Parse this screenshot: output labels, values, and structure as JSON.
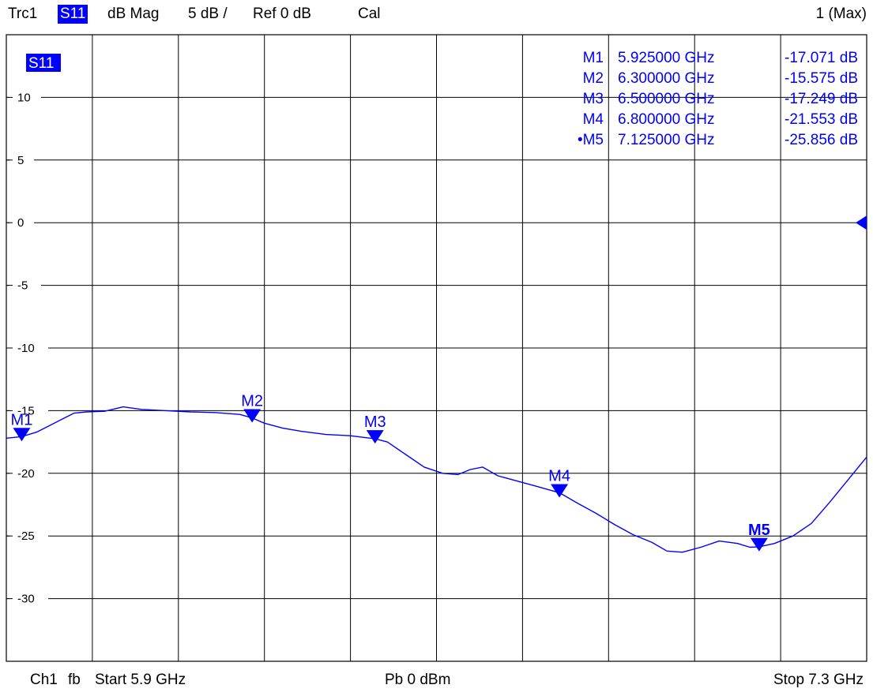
{
  "header": {
    "trace": "Trc1",
    "parameter": "S11",
    "format": "dB Mag",
    "scale": "5 dB /",
    "reference": "Ref 0 dB",
    "cal_status": "Cal",
    "window": "1 (Max)"
  },
  "footer": {
    "channel": "Ch1",
    "sweep_flag": "fb",
    "start": "Start  5.9 GHz",
    "power": "Pb   0 dBm",
    "stop": "Stop  7.3 GHz"
  },
  "colors": {
    "trace": "#0000ff",
    "grid": "#000000",
    "background": "#ffffff",
    "label_bg": "#0000ff"
  },
  "chart_data": {
    "type": "line",
    "trace_label": "S11",
    "x_range_ghz": [
      5.9,
      7.3
    ],
    "ylim": [
      -35,
      15
    ],
    "y_divisions": 10,
    "x_divisions": 10,
    "y_tick_values": [
      10,
      5,
      0,
      -5,
      -10,
      -15,
      -20,
      -25,
      -30
    ],
    "y_tick_labels": [
      "10",
      "5",
      "0",
      "-5",
      "-10",
      "-15",
      "-20",
      "-25",
      "-30"
    ],
    "reference_level": 0,
    "grid": true,
    "series": [
      {
        "name": "S11",
        "x": [
          5.9,
          5.925,
          5.95,
          5.97,
          5.99,
          6.01,
          6.03,
          6.06,
          6.09,
          6.12,
          6.16,
          6.2,
          6.24,
          6.28,
          6.3,
          6.32,
          6.35,
          6.38,
          6.42,
          6.46,
          6.5,
          6.52,
          6.55,
          6.58,
          6.61,
          6.635,
          6.655,
          6.675,
          6.7,
          6.73,
          6.76,
          6.8,
          6.83,
          6.86,
          6.89,
          6.92,
          6.95,
          6.975,
          7.0,
          7.03,
          7.06,
          7.09,
          7.11,
          7.125,
          7.15,
          7.18,
          7.21,
          7.24,
          7.27,
          7.3
        ],
        "y": [
          -17.2,
          -17.07,
          -16.7,
          -16.2,
          -15.7,
          -15.2,
          -15.1,
          -15.05,
          -14.7,
          -14.9,
          -15.0,
          -15.1,
          -15.15,
          -15.3,
          -15.58,
          -16.0,
          -16.4,
          -16.65,
          -16.9,
          -17.0,
          -17.25,
          -17.5,
          -18.5,
          -19.5,
          -20.0,
          -20.1,
          -19.7,
          -19.5,
          -20.2,
          -20.6,
          -21.0,
          -21.55,
          -22.4,
          -23.2,
          -24.1,
          -24.9,
          -25.5,
          -26.2,
          -26.3,
          -25.9,
          -25.4,
          -25.6,
          -25.9,
          -25.86,
          -25.6,
          -25.0,
          -24.0,
          -22.3,
          -20.5,
          -18.7
        ]
      }
    ],
    "markers": [
      {
        "name": "M1",
        "label": "M1",
        "freq": "5.925000 GHz",
        "value": "-17.071 dB",
        "x": 5.925,
        "y": -17.071,
        "active": false
      },
      {
        "name": "M2",
        "label": "M2",
        "freq": "6.300000 GHz",
        "value": "-15.575 dB",
        "x": 6.3,
        "y": -15.575,
        "active": false
      },
      {
        "name": "M3",
        "label": "M3",
        "freq": "6.500000 GHz",
        "value": "-17.249 dB",
        "x": 6.5,
        "y": -17.249,
        "active": false
      },
      {
        "name": "M4",
        "label": "M4",
        "freq": "6.800000 GHz",
        "value": "-21.553 dB",
        "x": 6.8,
        "y": -21.553,
        "active": false
      },
      {
        "name": "M5",
        "label": "M5",
        "freq": "7.125000 GHz",
        "value": "-25.856 dB",
        "x": 7.125,
        "y": -25.856,
        "active": true
      }
    ],
    "active_marker_bullet": "•"
  }
}
